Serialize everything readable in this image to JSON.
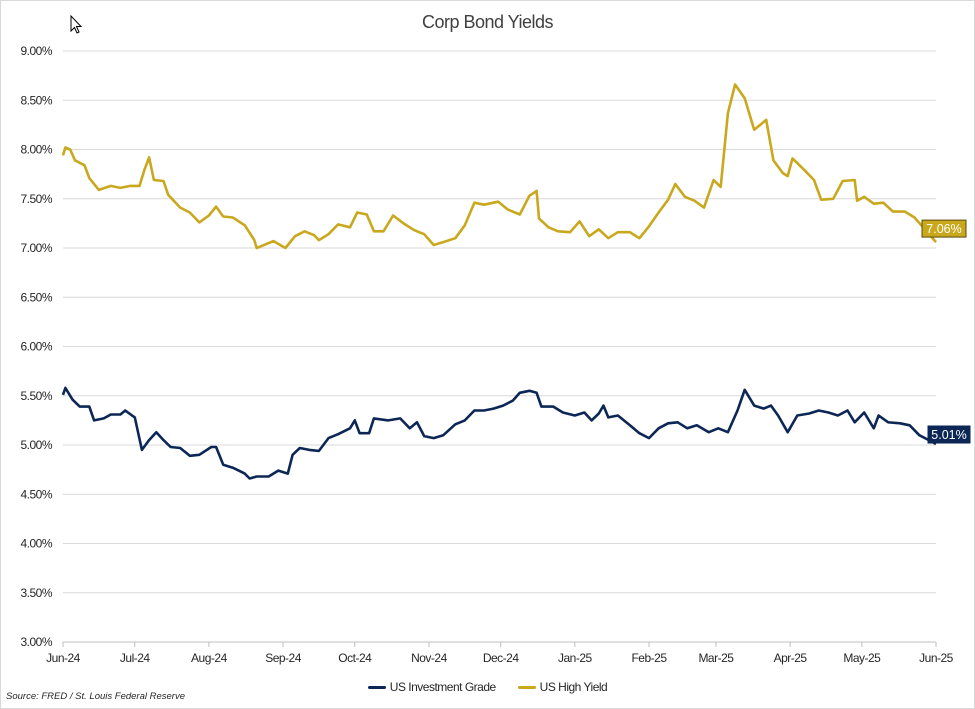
{
  "chart_data": {
    "type": "line",
    "title": "Corp Bond Yields",
    "xlabel": "",
    "ylabel": "",
    "ylim": [
      3.0,
      9.0
    ],
    "xlim": [
      "2024-06-01",
      "2025-06-01"
    ],
    "y_ticks": [
      "3.00%",
      "3.50%",
      "4.00%",
      "4.50%",
      "5.00%",
      "5.50%",
      "6.00%",
      "6.50%",
      "7.00%",
      "7.50%",
      "8.00%",
      "8.50%",
      "9.00%"
    ],
    "x_ticks": [
      {
        "date": "2024-06-01",
        "label": "Jun-24"
      },
      {
        "date": "2024-07-01",
        "label": "Jul-24"
      },
      {
        "date": "2024-08-01",
        "label": "Aug-24"
      },
      {
        "date": "2024-09-01",
        "label": "Sep-24"
      },
      {
        "date": "2024-10-01",
        "label": "Oct-24"
      },
      {
        "date": "2024-11-01",
        "label": "Nov-24"
      },
      {
        "date": "2024-12-01",
        "label": "Dec-24"
      },
      {
        "date": "2025-01-01",
        "label": "Jan-25"
      },
      {
        "date": "2025-02-01",
        "label": "Feb-25"
      },
      {
        "date": "2025-03-01",
        "label": "Mar-25"
      },
      {
        "date": "2025-04-01",
        "label": "Apr-25"
      },
      {
        "date": "2025-05-01",
        "label": "May-25"
      },
      {
        "date": "2025-06-01",
        "label": "Jun-25"
      }
    ],
    "grid": "horizontal",
    "legend": "bottom",
    "series": [
      {
        "name": "US Investment Grade",
        "color": "#0c2756",
        "end_label": "5.01%",
        "points": [
          [
            "2024-06-01",
            5.51
          ],
          [
            "2024-06-02",
            5.58
          ],
          [
            "2024-06-05",
            5.46
          ],
          [
            "2024-06-08",
            5.39
          ],
          [
            "2024-06-12",
            5.39
          ],
          [
            "2024-06-14",
            5.25
          ],
          [
            "2024-06-18",
            5.27
          ],
          [
            "2024-06-21",
            5.31
          ],
          [
            "2024-06-25",
            5.31
          ],
          [
            "2024-06-27",
            5.35
          ],
          [
            "2024-07-01",
            5.28
          ],
          [
            "2024-07-04",
            4.95
          ],
          [
            "2024-07-07",
            5.05
          ],
          [
            "2024-07-10",
            5.13
          ],
          [
            "2024-07-13",
            5.05
          ],
          [
            "2024-07-16",
            4.98
          ],
          [
            "2024-07-20",
            4.97
          ],
          [
            "2024-07-24",
            4.89
          ],
          [
            "2024-07-28",
            4.9
          ],
          [
            "2024-08-02",
            4.98
          ],
          [
            "2024-08-04",
            4.98
          ],
          [
            "2024-08-07",
            4.8
          ],
          [
            "2024-08-11",
            4.77
          ],
          [
            "2024-08-16",
            4.71
          ],
          [
            "2024-08-18",
            4.66
          ],
          [
            "2024-08-21",
            4.68
          ],
          [
            "2024-08-26",
            4.68
          ],
          [
            "2024-08-30",
            4.74
          ],
          [
            "2024-09-03",
            4.71
          ],
          [
            "2024-09-05",
            4.9
          ],
          [
            "2024-09-08",
            4.97
          ],
          [
            "2024-09-12",
            4.95
          ],
          [
            "2024-09-16",
            4.94
          ],
          [
            "2024-09-20",
            5.07
          ],
          [
            "2024-09-24",
            5.11
          ],
          [
            "2024-09-29",
            5.17
          ],
          [
            "2024-10-01",
            5.25
          ],
          [
            "2024-10-03",
            5.12
          ],
          [
            "2024-10-07",
            5.12
          ],
          [
            "2024-10-09",
            5.27
          ],
          [
            "2024-10-15",
            5.25
          ],
          [
            "2024-10-20",
            5.27
          ],
          [
            "2024-10-24",
            5.17
          ],
          [
            "2024-10-27",
            5.23
          ],
          [
            "2024-10-30",
            5.09
          ],
          [
            "2024-11-03",
            5.07
          ],
          [
            "2024-11-07",
            5.1
          ],
          [
            "2024-11-12",
            5.21
          ],
          [
            "2024-11-16",
            5.25
          ],
          [
            "2024-11-20",
            5.35
          ],
          [
            "2024-11-24",
            5.35
          ],
          [
            "2024-11-28",
            5.37
          ],
          [
            "2024-12-02",
            5.4
          ],
          [
            "2024-12-06",
            5.45
          ],
          [
            "2024-12-09",
            5.53
          ],
          [
            "2024-12-13",
            5.55
          ],
          [
            "2024-12-16",
            5.53
          ],
          [
            "2024-12-18",
            5.39
          ],
          [
            "2024-12-23",
            5.39
          ],
          [
            "2024-12-27",
            5.33
          ],
          [
            "2025-01-01",
            5.3
          ],
          [
            "2025-01-05",
            5.33
          ],
          [
            "2025-01-08",
            5.25
          ],
          [
            "2025-01-11",
            5.32
          ],
          [
            "2025-01-13",
            5.4
          ],
          [
            "2025-01-15",
            5.28
          ],
          [
            "2025-01-19",
            5.3
          ],
          [
            "2025-01-24",
            5.2
          ],
          [
            "2025-01-28",
            5.12
          ],
          [
            "2025-02-01",
            5.07
          ],
          [
            "2025-02-05",
            5.17
          ],
          [
            "2025-02-09",
            5.22
          ],
          [
            "2025-02-13",
            5.23
          ],
          [
            "2025-02-17",
            5.17
          ],
          [
            "2025-02-21",
            5.2
          ],
          [
            "2025-02-26",
            5.13
          ],
          [
            "2025-03-02",
            5.17
          ],
          [
            "2025-03-06",
            5.13
          ],
          [
            "2025-03-10",
            5.35
          ],
          [
            "2025-03-13",
            5.56
          ],
          [
            "2025-03-17",
            5.4
          ],
          [
            "2025-03-21",
            5.37
          ],
          [
            "2025-03-24",
            5.4
          ],
          [
            "2025-03-27",
            5.3
          ],
          [
            "2025-03-31",
            5.13
          ],
          [
            "2025-04-04",
            5.3
          ],
          [
            "2025-04-09",
            5.32
          ],
          [
            "2025-04-13",
            5.35
          ],
          [
            "2025-04-17",
            5.33
          ],
          [
            "2025-04-21",
            5.3
          ],
          [
            "2025-04-25",
            5.35
          ],
          [
            "2025-04-28",
            5.23
          ],
          [
            "2025-05-02",
            5.33
          ],
          [
            "2025-05-06",
            5.17
          ],
          [
            "2025-05-08",
            5.3
          ],
          [
            "2025-05-12",
            5.23
          ],
          [
            "2025-05-17",
            5.22
          ],
          [
            "2025-05-21",
            5.2
          ],
          [
            "2025-05-25",
            5.1
          ],
          [
            "2025-05-29",
            5.05
          ],
          [
            "2025-06-01",
            5.01
          ]
        ]
      },
      {
        "name": "US High Yield",
        "color": "#c9a81e",
        "end_label": "7.06%",
        "points": [
          [
            "2024-06-01",
            7.94
          ],
          [
            "2024-06-02",
            8.02
          ],
          [
            "2024-06-04",
            8.0
          ],
          [
            "2024-06-06",
            7.89
          ],
          [
            "2024-06-10",
            7.84
          ],
          [
            "2024-06-12",
            7.71
          ],
          [
            "2024-06-16",
            7.59
          ],
          [
            "2024-06-21",
            7.63
          ],
          [
            "2024-06-25",
            7.61
          ],
          [
            "2024-06-29",
            7.63
          ],
          [
            "2024-07-03",
            7.63
          ],
          [
            "2024-07-05",
            7.79
          ],
          [
            "2024-07-07",
            7.92
          ],
          [
            "2024-07-09",
            7.69
          ],
          [
            "2024-07-13",
            7.68
          ],
          [
            "2024-07-15",
            7.54
          ],
          [
            "2024-07-20",
            7.41
          ],
          [
            "2024-07-24",
            7.36
          ],
          [
            "2024-07-28",
            7.26
          ],
          [
            "2024-08-01",
            7.33
          ],
          [
            "2024-08-04",
            7.42
          ],
          [
            "2024-08-07",
            7.32
          ],
          [
            "2024-08-11",
            7.31
          ],
          [
            "2024-08-16",
            7.23
          ],
          [
            "2024-08-20",
            7.08
          ],
          [
            "2024-08-21",
            7.0
          ],
          [
            "2024-08-26",
            7.05
          ],
          [
            "2024-08-28",
            7.07
          ],
          [
            "2024-09-02",
            7.0
          ],
          [
            "2024-09-06",
            7.12
          ],
          [
            "2024-09-10",
            7.17
          ],
          [
            "2024-09-14",
            7.13
          ],
          [
            "2024-09-16",
            7.08
          ],
          [
            "2024-09-20",
            7.14
          ],
          [
            "2024-09-24",
            7.24
          ],
          [
            "2024-09-29",
            7.21
          ],
          [
            "2024-10-02",
            7.36
          ],
          [
            "2024-10-06",
            7.34
          ],
          [
            "2024-10-09",
            7.17
          ],
          [
            "2024-10-13",
            7.17
          ],
          [
            "2024-10-17",
            7.33
          ],
          [
            "2024-10-22",
            7.24
          ],
          [
            "2024-10-26",
            7.18
          ],
          [
            "2024-10-30",
            7.14
          ],
          [
            "2024-11-03",
            7.03
          ],
          [
            "2024-11-07",
            7.06
          ],
          [
            "2024-11-12",
            7.1
          ],
          [
            "2024-11-16",
            7.23
          ],
          [
            "2024-11-20",
            7.46
          ],
          [
            "2024-11-24",
            7.44
          ],
          [
            "2024-11-30",
            7.47
          ],
          [
            "2024-12-04",
            7.39
          ],
          [
            "2024-12-09",
            7.34
          ],
          [
            "2024-12-13",
            7.53
          ],
          [
            "2024-12-16",
            7.58
          ],
          [
            "2024-12-17",
            7.3
          ],
          [
            "2024-12-21",
            7.21
          ],
          [
            "2024-12-25",
            7.17
          ],
          [
            "2024-12-30",
            7.16
          ],
          [
            "2025-01-03",
            7.27
          ],
          [
            "2025-01-07",
            7.12
          ],
          [
            "2025-01-11",
            7.19
          ],
          [
            "2025-01-15",
            7.1
          ],
          [
            "2025-01-19",
            7.16
          ],
          [
            "2025-01-24",
            7.16
          ],
          [
            "2025-01-28",
            7.1
          ],
          [
            "2025-02-01",
            7.22
          ],
          [
            "2025-02-05",
            7.36
          ],
          [
            "2025-02-09",
            7.49
          ],
          [
            "2025-02-12",
            7.65
          ],
          [
            "2025-02-16",
            7.52
          ],
          [
            "2025-02-20",
            7.48
          ],
          [
            "2025-02-24",
            7.41
          ],
          [
            "2025-02-28",
            7.69
          ],
          [
            "2025-03-03",
            7.62
          ],
          [
            "2025-03-06",
            8.37
          ],
          [
            "2025-03-09",
            8.66
          ],
          [
            "2025-03-13",
            8.52
          ],
          [
            "2025-03-17",
            8.2
          ],
          [
            "2025-03-22",
            8.3
          ],
          [
            "2025-03-25",
            7.89
          ],
          [
            "2025-03-29",
            7.76
          ],
          [
            "2025-03-31",
            7.73
          ],
          [
            "2025-04-02",
            7.91
          ],
          [
            "2025-04-07",
            7.79
          ],
          [
            "2025-04-11",
            7.69
          ],
          [
            "2025-04-14",
            7.49
          ],
          [
            "2025-04-19",
            7.5
          ],
          [
            "2025-04-23",
            7.68
          ],
          [
            "2025-04-28",
            7.69
          ],
          [
            "2025-04-29",
            7.48
          ],
          [
            "2025-05-02",
            7.52
          ],
          [
            "2025-05-06",
            7.45
          ],
          [
            "2025-05-10",
            7.46
          ],
          [
            "2025-05-14",
            7.37
          ],
          [
            "2025-05-19",
            7.37
          ],
          [
            "2025-05-23",
            7.31
          ],
          [
            "2025-05-27",
            7.2
          ],
          [
            "2025-06-01",
            7.06
          ]
        ]
      }
    ],
    "source": "Source: FRED / St. Louis Federal Reserve"
  }
}
